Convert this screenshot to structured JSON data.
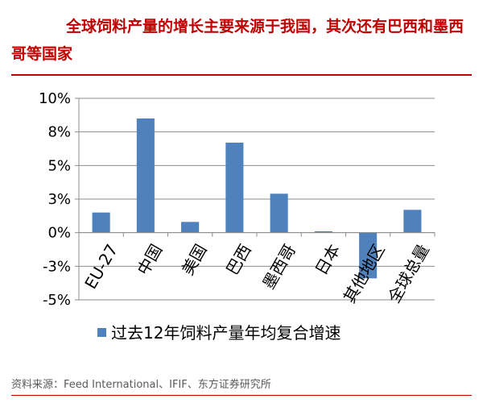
{
  "header": {
    "title": "全球饲料产量的增长主要来源于我国，其次还有巴西和墨西哥等国家"
  },
  "footer": {
    "source": "资料来源：Feed International、IFIF、东方证券研究所"
  },
  "chart_data": {
    "type": "bar",
    "categories": [
      "EU-27",
      "中国",
      "美国",
      "巴西",
      "墨西哥",
      "日本",
      "其他地区",
      "全球总量"
    ],
    "series": [
      {
        "name": "过去12年饲料产量年均复合增速",
        "values": [
          1.5,
          8.5,
          0.8,
          6.7,
          2.9,
          0.1,
          -3.4,
          1.7
        ]
      }
    ],
    "yticks": [
      -5,
      -2.5,
      0,
      2.5,
      5,
      7.5,
      10
    ],
    "ytick_labels": [
      "-5%",
      "-3%",
      "0%",
      "3%",
      "5%",
      "8%",
      "10%"
    ],
    "ylim": [
      -5,
      10
    ],
    "xlabel": "",
    "ylabel": "",
    "grid": true,
    "legend": "bottom",
    "bar_color": "#4f81bd"
  }
}
